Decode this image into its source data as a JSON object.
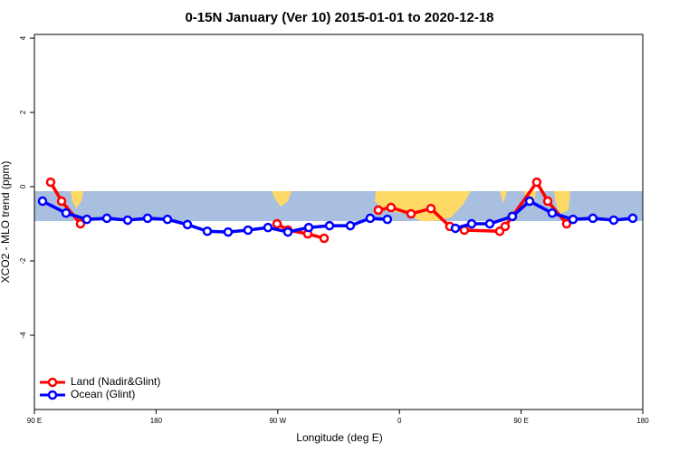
{
  "chart_data": {
    "type": "line",
    "title": "0-15N January (Ver 10)   2015-01-01 to 2020-12-18",
    "x_label": "Longitude (deg E)",
    "y_label": "XCO2 - MLO trend (ppm)",
    "xlim": [
      90,
      540
    ],
    "xticks": [
      {
        "value": 90,
        "label": "90 E"
      },
      {
        "value": 180,
        "label": "180"
      },
      {
        "value": 270,
        "label": "90 W"
      },
      {
        "value": 360,
        "label": "0"
      },
      {
        "value": 450,
        "label": "90 E"
      },
      {
        "value": 540,
        "label": "180"
      }
    ],
    "ylim": [
      -6.0,
      4.1
    ],
    "yticks": [
      4,
      2,
      0,
      -2,
      -4
    ],
    "legend": "lower left",
    "series": [
      {
        "name": "Land (Nadir&Glint)",
        "color": "#ff0000",
        "x": [
          102,
          110.1,
          124.1,
          null,
          269.5,
          277.5,
          292.2,
          304.3,
          null,
          344.4,
          353.8,
          368.6,
          383.3,
          397.3,
          408,
          434.2,
          438.2,
          443.5,
          461.6,
          469.7,
          483.7
        ],
        "values": [
          0.12,
          -0.39,
          -1.0,
          null,
          -1.0,
          -1.17,
          -1.27,
          -1.39,
          null,
          -0.63,
          -0.56,
          -0.73,
          -0.59,
          -1.07,
          -1.17,
          -1.2,
          -1.07,
          -0.8,
          0.12,
          -0.39,
          -1.0
        ]
      },
      {
        "name": "Ocean (Glint)",
        "color": "#0000ff",
        "x": [
          96,
          113.4,
          128.8,
          143.6,
          159,
          173.7,
          188.4,
          203.2,
          217.9,
          233.3,
          248,
          262.8,
          277.5,
          292.9,
          308.3,
          323.7,
          338.4,
          351.1,
          null,
          401.4,
          413.4,
          426.8,
          443.5,
          456.3,
          473,
          488.4,
          503.1,
          518.5,
          532.6
        ],
        "values": [
          -0.39,
          -0.71,
          -0.88,
          -0.85,
          -0.9,
          -0.85,
          -0.88,
          -1.02,
          -1.2,
          -1.22,
          -1.17,
          -1.1,
          -1.22,
          -1.1,
          -1.05,
          -1.05,
          -0.85,
          -0.88,
          null,
          -1.12,
          -1.0,
          -1.0,
          -0.8,
          -0.39,
          -0.71,
          -0.88,
          -0.85,
          -0.9,
          -0.85
        ]
      }
    ]
  }
}
